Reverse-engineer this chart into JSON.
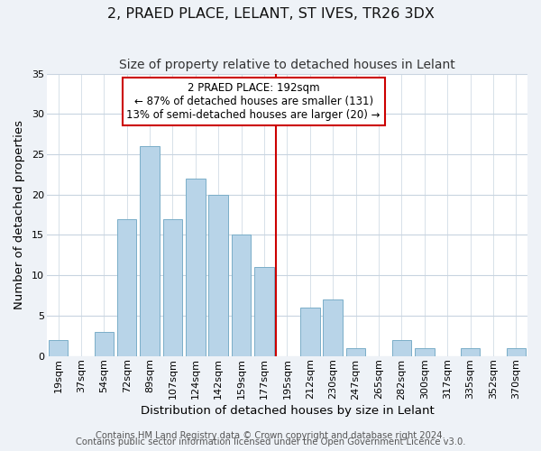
{
  "title": "2, PRAED PLACE, LELANT, ST IVES, TR26 3DX",
  "subtitle": "Size of property relative to detached houses in Lelant",
  "xlabel": "Distribution of detached houses by size in Lelant",
  "ylabel": "Number of detached properties",
  "bar_labels": [
    "19sqm",
    "37sqm",
    "54sqm",
    "72sqm",
    "89sqm",
    "107sqm",
    "124sqm",
    "142sqm",
    "159sqm",
    "177sqm",
    "195sqm",
    "212sqm",
    "230sqm",
    "247sqm",
    "265sqm",
    "282sqm",
    "300sqm",
    "317sqm",
    "335sqm",
    "352sqm",
    "370sqm"
  ],
  "bar_values": [
    2,
    0,
    3,
    17,
    26,
    17,
    22,
    20,
    15,
    11,
    0,
    6,
    7,
    1,
    0,
    2,
    1,
    0,
    1,
    0,
    1
  ],
  "bar_color": "#b8d4e8",
  "bar_edge_color": "#7aaec8",
  "vline_x_index": 10,
  "vline_color": "#cc0000",
  "ylim": [
    0,
    35
  ],
  "yticks": [
    0,
    5,
    10,
    15,
    20,
    25,
    30,
    35
  ],
  "annotation_title": "2 PRAED PLACE: 192sqm",
  "annotation_line1": "← 87% of detached houses are smaller (131)",
  "annotation_line2": "13% of semi-detached houses are larger (20) →",
  "annotation_box_color": "#ffffff",
  "annotation_box_edge": "#cc0000",
  "footer1": "Contains HM Land Registry data © Crown copyright and database right 2024.",
  "footer2": "Contains public sector information licensed under the Open Government Licence v3.0.",
  "background_color": "#eef2f7",
  "plot_background": "#ffffff",
  "grid_color": "#c8d4e0",
  "title_fontsize": 11.5,
  "subtitle_fontsize": 10,
  "axis_label_fontsize": 9.5,
  "tick_fontsize": 8,
  "annotation_fontsize": 8.5,
  "footer_fontsize": 7.2
}
